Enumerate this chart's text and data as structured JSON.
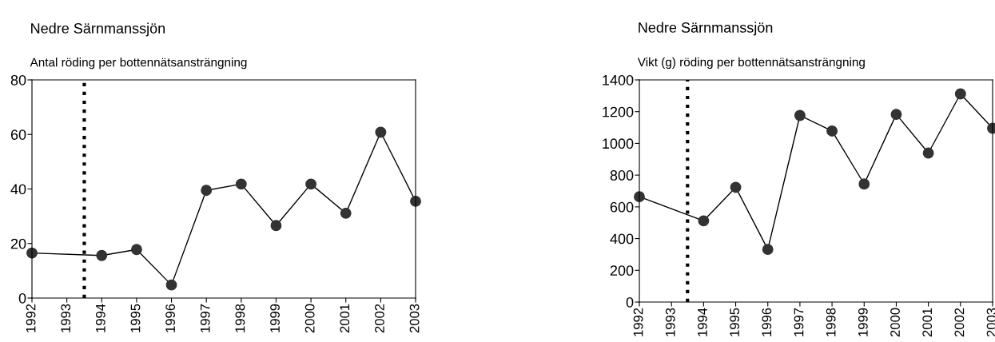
{
  "chart_data": [
    {
      "type": "line",
      "title": "Nedre Särnmanssjön",
      "subtitle": "Antal röding per bottennätsansträngning",
      "x": [
        1992,
        1994,
        1995,
        1996,
        1997,
        1998,
        1999,
        2000,
        2001,
        2002,
        2003
      ],
      "series": [
        {
          "color": "#333333",
          "values": [
            16.5,
            15.6,
            17.8,
            4.8,
            39.5,
            41.8,
            26.6,
            41.8,
            31.1,
            60.8,
            35.5
          ]
        }
      ],
      "xlim": [
        1992,
        2003
      ],
      "xticks": [
        {
          "value": 1992,
          "label": "1992"
        },
        {
          "value": 1993,
          "label": "1993"
        },
        {
          "value": 1994,
          "label": "1994"
        },
        {
          "value": 1995,
          "label": "1995"
        },
        {
          "value": 1996,
          "label": "1996"
        },
        {
          "value": 1997,
          "label": "1997"
        },
        {
          "value": 1998,
          "label": "1998"
        },
        {
          "value": 1999,
          "label": "1999"
        },
        {
          "value": 2000,
          "label": "2000"
        },
        {
          "value": 2001,
          "label": "2001"
        },
        {
          "value": 2002,
          "label": "2002"
        },
        {
          "value": 2003,
          "label": "2003"
        }
      ],
      "ylim": [
        0,
        80
      ],
      "yticks": [
        0,
        20,
        40,
        60,
        80
      ],
      "marker": "circle",
      "line_style": "solid",
      "grid": false,
      "legend": false,
      "ref_lines": [
        {
          "axis": "x",
          "value": 1993.5,
          "color": "#000000",
          "line_style": "dotted"
        }
      ]
    },
    {
      "type": "line",
      "title": "Nedre Särnmanssjön",
      "subtitle": "Vikt (g) röding per bottennätsansträngning",
      "x": [
        1992,
        1994,
        1995,
        1996,
        1997,
        1998,
        1999,
        2000,
        2001,
        2002,
        2003
      ],
      "series": [
        {
          "color": "#333333",
          "values": [
            664,
            512,
            723,
            332,
            1176,
            1078,
            744,
            1183,
            939,
            1312,
            1095
          ]
        }
      ],
      "xlim": [
        1992,
        2003
      ],
      "xticks": [
        {
          "value": 1992,
          "label": "1992"
        },
        {
          "value": 1993,
          "label": "1993"
        },
        {
          "value": 1994,
          "label": "1994"
        },
        {
          "value": 1995,
          "label": "1995"
        },
        {
          "value": 1996,
          "label": "1996"
        },
        {
          "value": 1997,
          "label": "1997"
        },
        {
          "value": 1998,
          "label": "1998"
        },
        {
          "value": 1999,
          "label": "1999"
        },
        {
          "value": 2000,
          "label": "2000"
        },
        {
          "value": 2001,
          "label": "2001"
        },
        {
          "value": 2002,
          "label": "2002"
        },
        {
          "value": 2003,
          "label": "2003"
        }
      ],
      "ylim": [
        0,
        1400
      ],
      "yticks": [
        0,
        200,
        400,
        600,
        800,
        1000,
        1200,
        1400
      ],
      "marker": "circle",
      "line_style": "solid",
      "grid": false,
      "legend": false,
      "ref_lines": [
        {
          "axis": "x",
          "value": 1993.5,
          "color": "#000000",
          "line_style": "dotted"
        }
      ]
    }
  ]
}
